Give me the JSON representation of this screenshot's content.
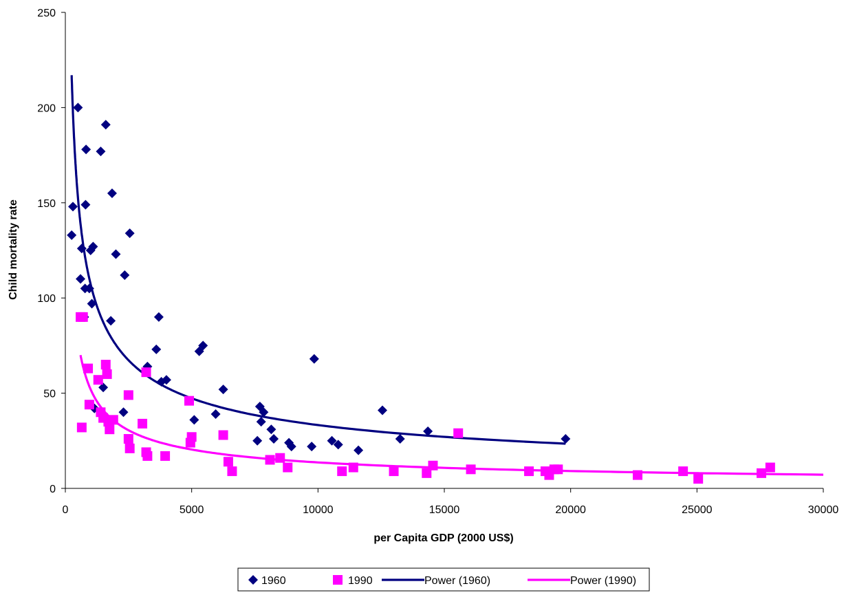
{
  "chart_data": {
    "type": "scatter",
    "title": "",
    "xlabel": "per Capita GDP (2000 US$)",
    "ylabel": "Child mortality rate",
    "xlim": [
      0,
      30000
    ],
    "ylim": [
      0,
      250
    ],
    "x_ticks": [
      "0",
      "5000",
      "10000",
      "15000",
      "20000",
      "25000",
      "30000"
    ],
    "y_ticks": [
      "0",
      "50",
      "100",
      "150",
      "200",
      "250"
    ],
    "grid": false,
    "legend_position": "bottom",
    "series": [
      {
        "name": "1960",
        "marker": "diamond",
        "color": "#000080",
        "points": [
          [
            250,
            133
          ],
          [
            300,
            148
          ],
          [
            500,
            200
          ],
          [
            600,
            110
          ],
          [
            650,
            126
          ],
          [
            750,
            90
          ],
          [
            780,
            105
          ],
          [
            800,
            149
          ],
          [
            820,
            178
          ],
          [
            950,
            105
          ],
          [
            1000,
            125
          ],
          [
            1050,
            97
          ],
          [
            1100,
            127
          ],
          [
            1150,
            42
          ],
          [
            1400,
            177
          ],
          [
            1500,
            53
          ],
          [
            1600,
            191
          ],
          [
            1800,
            88
          ],
          [
            1850,
            155
          ],
          [
            2000,
            123
          ],
          [
            2300,
            40
          ],
          [
            2350,
            112
          ],
          [
            2550,
            134
          ],
          [
            3250,
            64
          ],
          [
            3600,
            73
          ],
          [
            3700,
            90
          ],
          [
            3800,
            56
          ],
          [
            4000,
            57
          ],
          [
            5100,
            36
          ],
          [
            5300,
            72
          ],
          [
            5450,
            75
          ],
          [
            5950,
            39
          ],
          [
            6250,
            52
          ],
          [
            7600,
            25
          ],
          [
            7700,
            43
          ],
          [
            7750,
            35
          ],
          [
            7850,
            40
          ],
          [
            8150,
            31
          ],
          [
            8250,
            26
          ],
          [
            8850,
            24
          ],
          [
            8950,
            22
          ],
          [
            9750,
            22
          ],
          [
            9850,
            68
          ],
          [
            10550,
            25
          ],
          [
            10800,
            23
          ],
          [
            11600,
            20
          ],
          [
            12550,
            41
          ],
          [
            13250,
            26
          ],
          [
            14350,
            30
          ],
          [
            19800,
            26
          ]
        ]
      },
      {
        "name": "1990",
        "marker": "square",
        "color": "#FF00FF",
        "points": [
          [
            600,
            90
          ],
          [
            650,
            32
          ],
          [
            700,
            90
          ],
          [
            900,
            63
          ],
          [
            950,
            44
          ],
          [
            1300,
            57
          ],
          [
            1400,
            40
          ],
          [
            1500,
            37
          ],
          [
            1600,
            65
          ],
          [
            1650,
            60
          ],
          [
            1700,
            35
          ],
          [
            1750,
            31
          ],
          [
            1900,
            36
          ],
          [
            2500,
            49
          ],
          [
            2500,
            26
          ],
          [
            2550,
            21
          ],
          [
            3050,
            34
          ],
          [
            3200,
            61
          ],
          [
            3200,
            19
          ],
          [
            3250,
            17
          ],
          [
            3950,
            17
          ],
          [
            4900,
            46
          ],
          [
            4950,
            24
          ],
          [
            5000,
            27
          ],
          [
            6250,
            28
          ],
          [
            6450,
            14
          ],
          [
            6600,
            9
          ],
          [
            8100,
            15
          ],
          [
            8500,
            16
          ],
          [
            8800,
            11
          ],
          [
            10950,
            9
          ],
          [
            11400,
            11
          ],
          [
            13000,
            9
          ],
          [
            14300,
            8
          ],
          [
            14550,
            12
          ],
          [
            15550,
            29
          ],
          [
            16050,
            10
          ],
          [
            18350,
            9
          ],
          [
            19000,
            9
          ],
          [
            19150,
            7
          ],
          [
            19350,
            10
          ],
          [
            19500,
            10
          ],
          [
            22650,
            7
          ],
          [
            24450,
            9
          ],
          [
            25050,
            5
          ],
          [
            27550,
            8
          ],
          [
            27900,
            11
          ]
        ]
      }
    ],
    "trendlines": [
      {
        "name": "Power (1960)",
        "color": "#000080",
        "x_range": [
          250,
          19800
        ],
        "points": [
          [
            250,
            217
          ],
          [
            19800,
            23.5
          ]
        ]
      },
      {
        "name": "Power (1990)",
        "color": "#FF00FF",
        "x_range": [
          600,
          30000
        ],
        "points": [
          [
            600,
            70
          ],
          [
            30000,
            7.2
          ]
        ]
      }
    ],
    "legend": [
      "1960",
      "1990",
      "Power (1960)",
      "Power (1990)"
    ]
  }
}
